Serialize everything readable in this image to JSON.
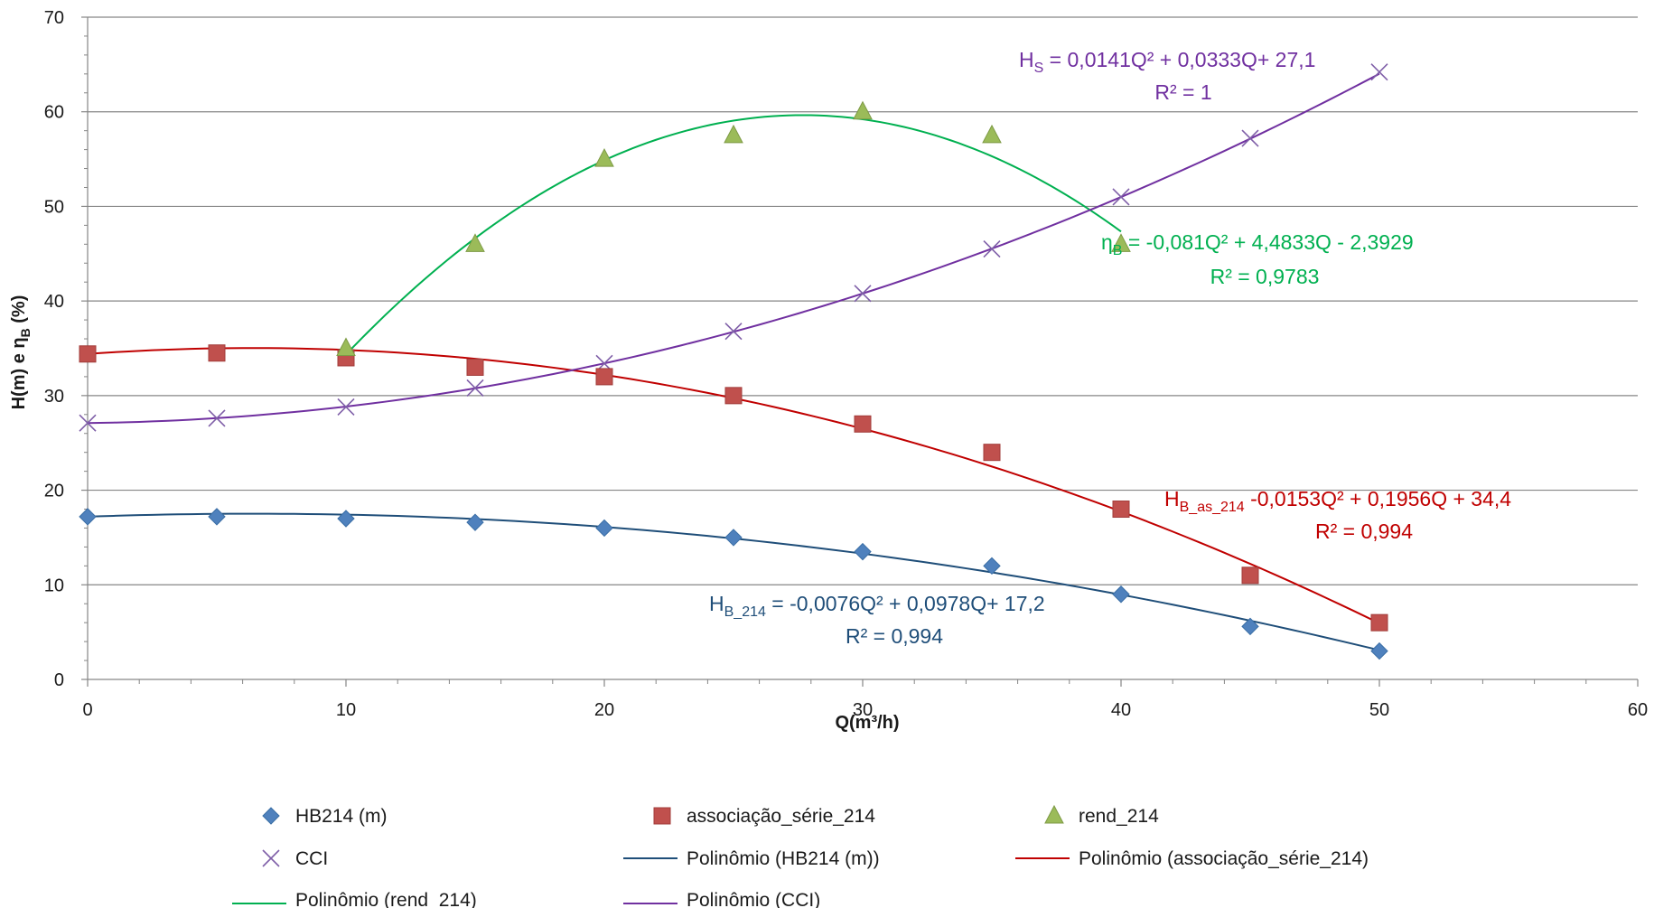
{
  "chart_data": {
    "type": "scatter",
    "xlabel": "Q(m³/h)",
    "ylabel": {
      "main": "H(m) e η",
      "sub": "B",
      "tail": " (%)"
    },
    "xlim": [
      0,
      60
    ],
    "ylim": [
      0,
      70
    ],
    "x_ticks": [
      0,
      10,
      20,
      30,
      40,
      50,
      60
    ],
    "y_ticks": [
      0,
      10,
      20,
      30,
      40,
      50,
      60,
      70
    ],
    "grid": "horizontal",
    "legend_position": "bottom",
    "colors": {
      "hb": "#4f81bd",
      "hb_line": "#1f4e79",
      "assoc": "#c0504d",
      "assoc_line": "#c00000",
      "rend": "#9bbb59",
      "rend_line": "#00b050",
      "cci": "#7f5fa8",
      "cci_line": "#7030a0"
    },
    "series": [
      {
        "name": "HB214 (m)",
        "marker": "diamond",
        "x": [
          0,
          5,
          10,
          15,
          20,
          25,
          30,
          35,
          40,
          45,
          50
        ],
        "y": [
          17.2,
          17.2,
          17.0,
          16.6,
          16.0,
          15.0,
          13.5,
          12.0,
          9.0,
          5.6,
          3.0
        ]
      },
      {
        "name": "associação_série_214",
        "marker": "square",
        "x": [
          0,
          5,
          10,
          15,
          20,
          25,
          30,
          35,
          40,
          45,
          50
        ],
        "y": [
          34.4,
          34.5,
          34.0,
          33.0,
          32.0,
          30.0,
          27.0,
          24.0,
          18.0,
          11.0,
          6.0
        ]
      },
      {
        "name": "rend_214",
        "marker": "triangle",
        "x": [
          10,
          15,
          20,
          25,
          30,
          35,
          40
        ],
        "y": [
          35.0,
          46.0,
          55.0,
          57.5,
          60.0,
          57.5,
          46.0
        ]
      },
      {
        "name": "CCI",
        "marker": "x",
        "x": [
          0,
          5,
          10,
          15,
          20,
          25,
          30,
          35,
          40,
          45,
          50
        ],
        "y": [
          27.1,
          27.6,
          28.8,
          30.8,
          33.4,
          36.8,
          40.8,
          45.5,
          51.0,
          57.2,
          64.2
        ]
      }
    ],
    "trendlines": [
      {
        "name": "Polinômio (HB214 (m))",
        "coef": [
          -0.0076,
          0.0978,
          17.2
        ],
        "x_range": [
          0,
          50
        ]
      },
      {
        "name": "Polinômio (associação_série_214)",
        "coef": [
          -0.0153,
          0.1956,
          34.4
        ],
        "x_range": [
          0,
          50
        ]
      },
      {
        "name": "Polinômio (rend_214)",
        "coef": [
          -0.081,
          4.4833,
          -2.3929
        ],
        "x_range": [
          10,
          40
        ]
      },
      {
        "name": "Polinômio (CCI)",
        "coef": [
          0.0141,
          0.0333,
          27.1
        ],
        "x_range": [
          0,
          50
        ]
      }
    ],
    "annotations": {
      "cci": {
        "sym": "H",
        "sub": "S",
        "eq": " = 0,0141Q² + 0,0333Q+ 27,1",
        "r2": "R² = 1"
      },
      "rend": {
        "sym": "η",
        "sub": "B",
        "eq": " = -0,081Q² + 4,4833Q - 2,3929",
        "r2": "R² = 0,9783"
      },
      "assoc": {
        "sym": "H",
        "sub": "B_as_214",
        "eq": " -0,0153Q² + 0,1956Q + 34,4",
        "r2": "R² = 0,994"
      },
      "hb": {
        "sym": "H",
        "sub": "B_214",
        "eq": " = -0,0076Q² + 0,0978Q+ 17,2",
        "r2": "R² = 0,994"
      }
    }
  }
}
